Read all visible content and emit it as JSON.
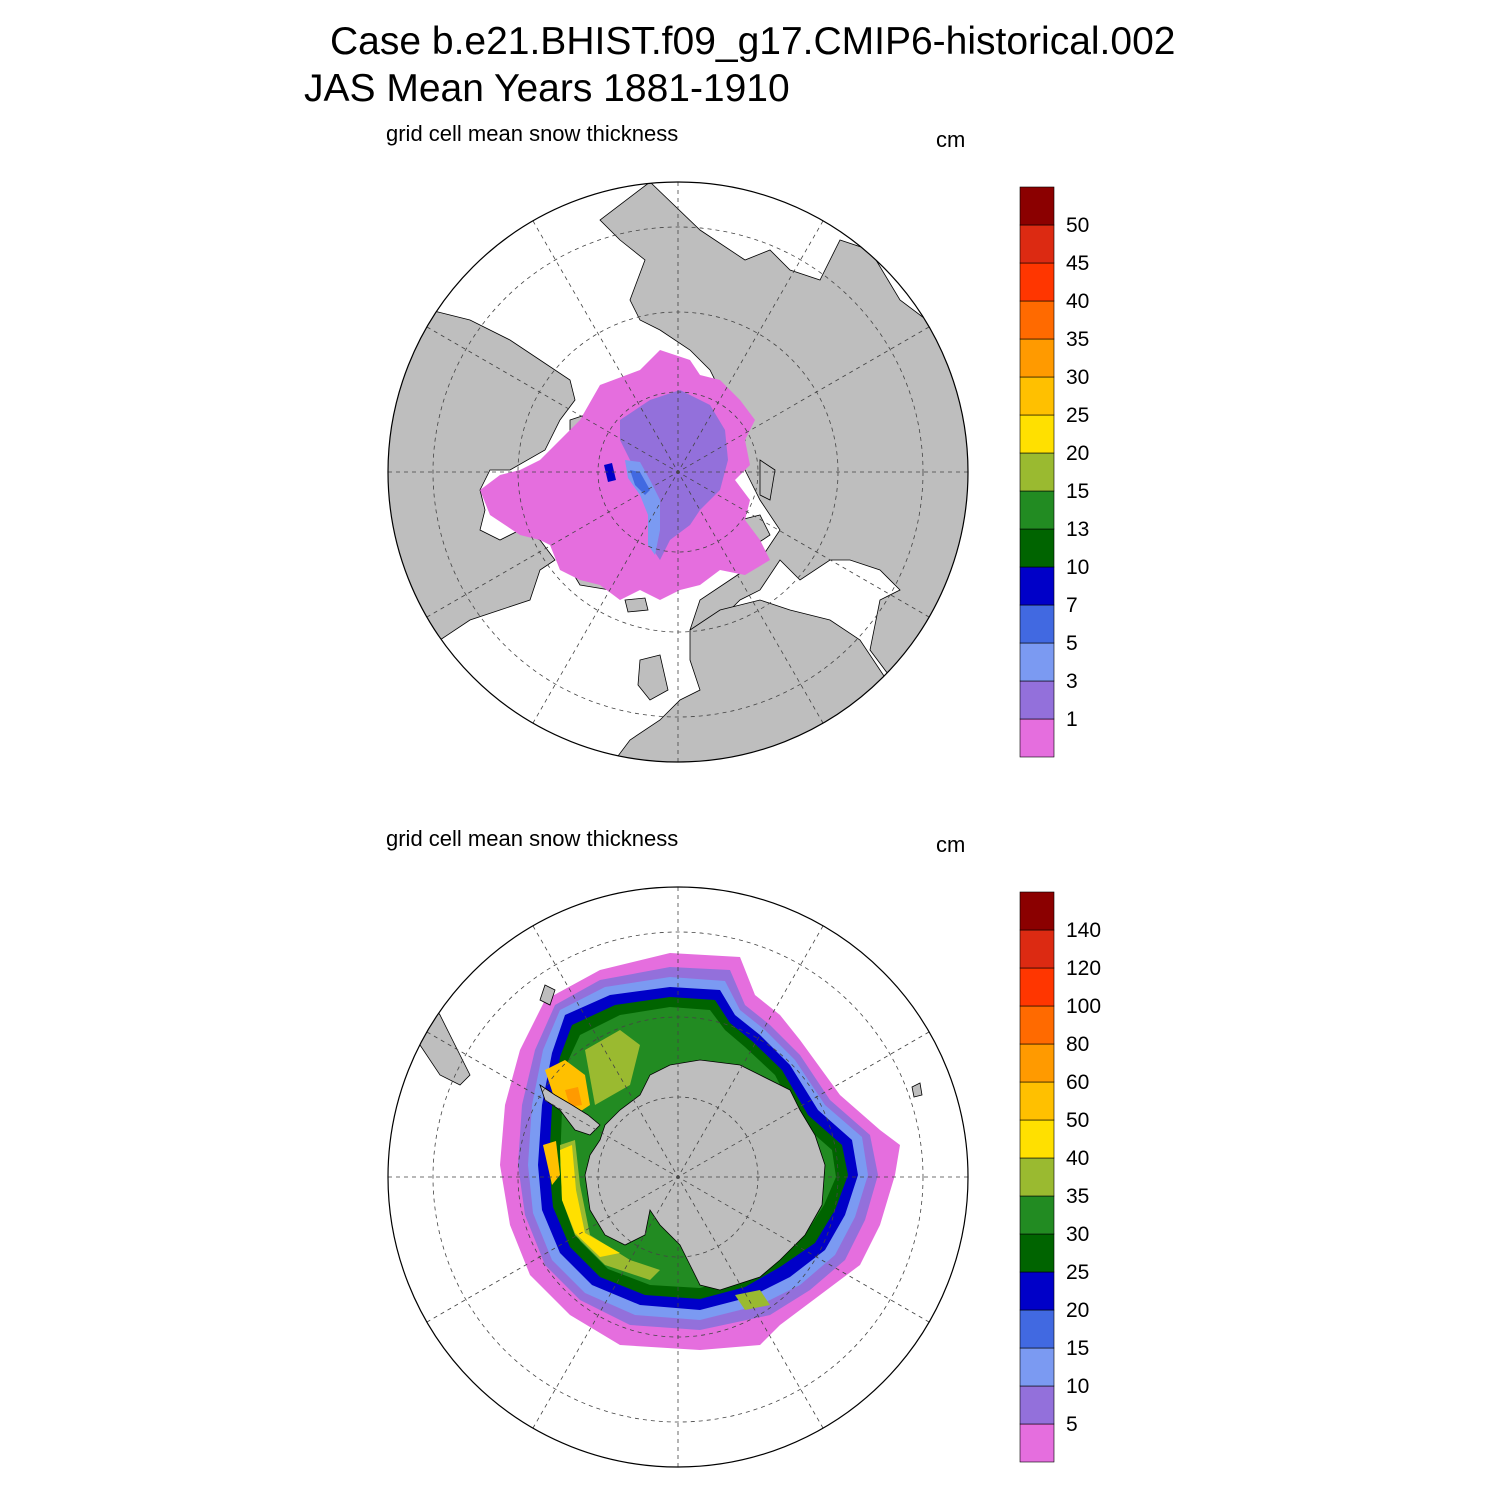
{
  "header": {
    "line1": "Case b.e21.BHIST.f09_g17.CMIP6-historical.002",
    "line2": "JAS Mean   Years 1881-1910"
  },
  "colors": {
    "land": "#bebebe",
    "ocean": "#ffffff",
    "scale": [
      "#e56ede",
      "#9370db",
      "#7b9af2",
      "#4169e1",
      "#0000c8",
      "#006400",
      "#228b22",
      "#9aba30",
      "#ffe000",
      "#ffc000",
      "#ff9a00",
      "#ff6a00",
      "#ff3600",
      "#dc2a12",
      "#8b0000"
    ]
  },
  "chart_data": [
    {
      "type": "heatmap",
      "projection": "north polar stereographic",
      "hemisphere": "north",
      "title": "grid cell mean snow thickness",
      "units": "cm",
      "colorbar_levels": [
        1,
        3,
        5,
        7,
        10,
        13,
        15,
        20,
        25,
        30,
        35,
        40,
        45,
        50
      ],
      "grid": true,
      "legend_position": "right"
    },
    {
      "type": "heatmap",
      "projection": "south polar stereographic",
      "hemisphere": "south",
      "title": "grid cell mean snow thickness",
      "units": "cm",
      "colorbar_levels": [
        5,
        10,
        15,
        20,
        25,
        30,
        35,
        40,
        50,
        60,
        80,
        100,
        120,
        140
      ],
      "grid": true,
      "legend_position": "right"
    }
  ]
}
